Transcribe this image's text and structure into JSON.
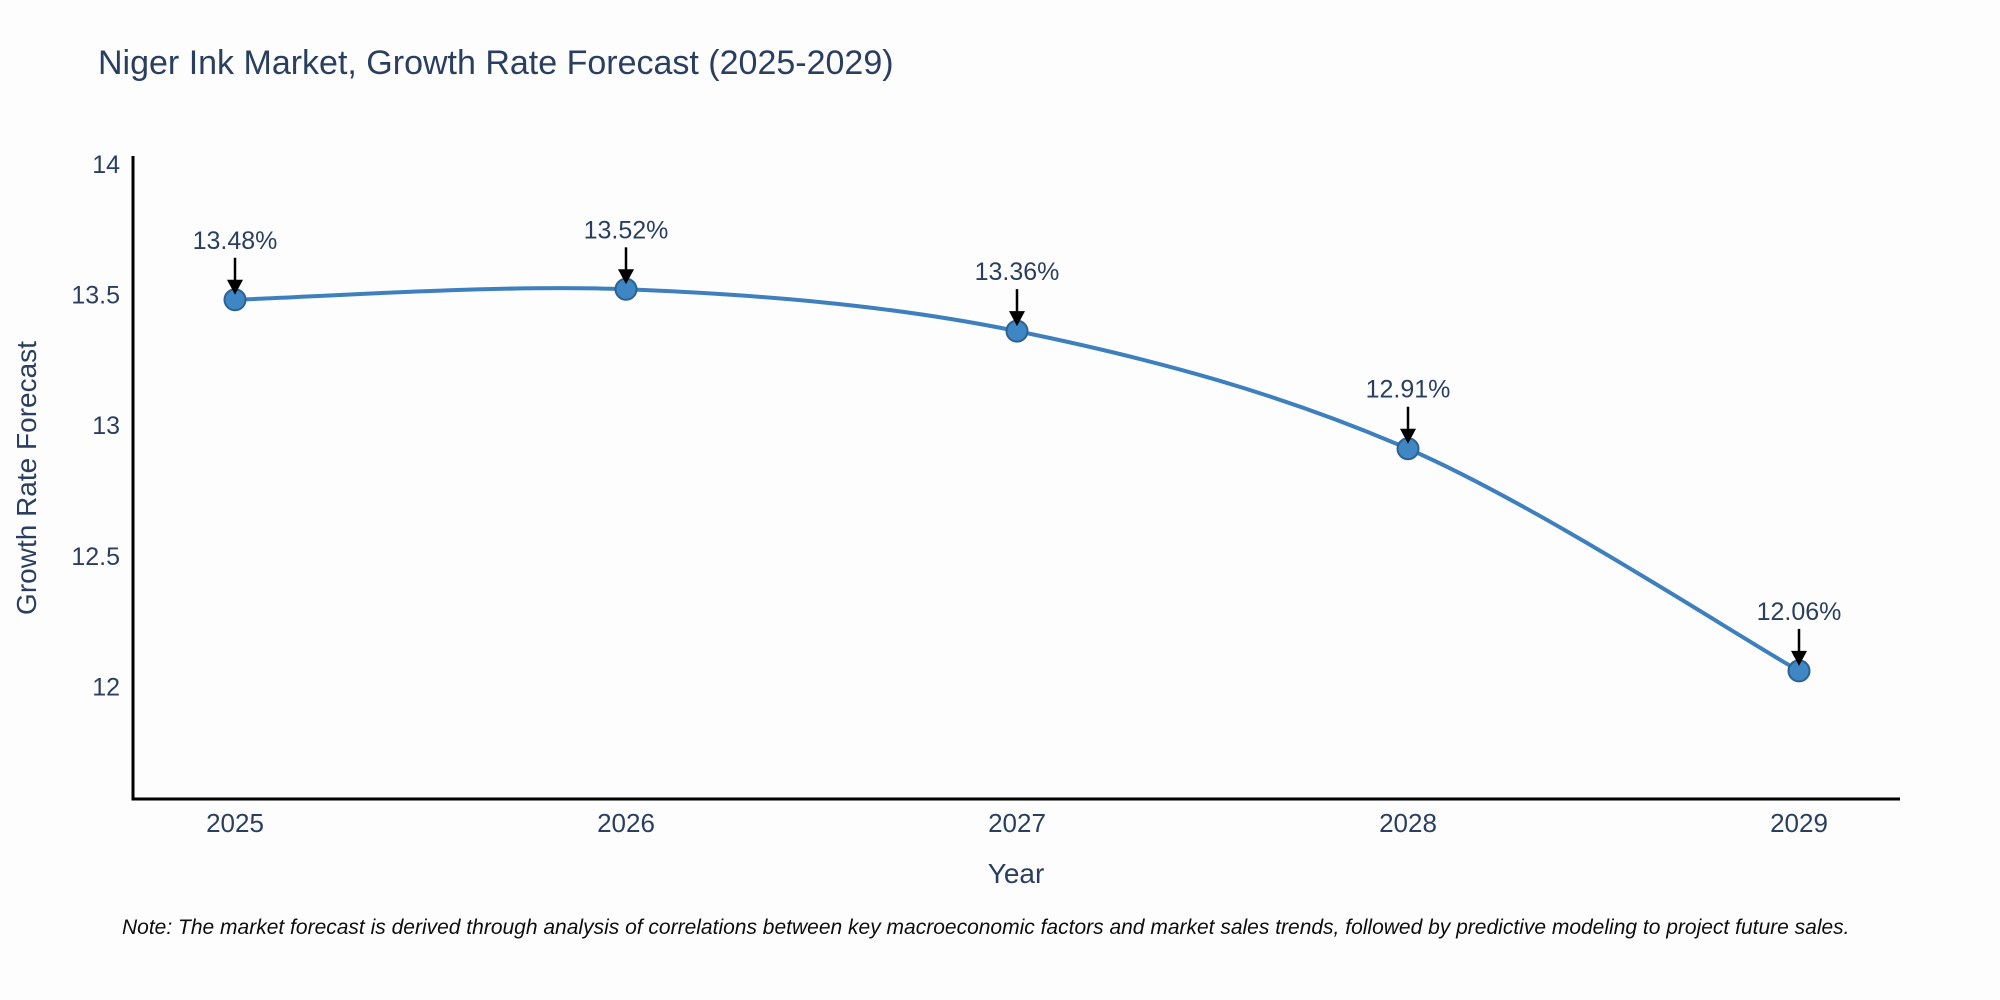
{
  "footnote": "Note: The market forecast is derived through analysis of correlations between key macroeconomic factors and market sales trends, followed by predictive modeling to project future sales.",
  "chart_data": {
    "type": "line",
    "title": "Niger Ink Market, Growth Rate Forecast (2025-2029)",
    "xlabel": "Year",
    "ylabel": "Growth Rate Forecast",
    "x": [
      2025,
      2026,
      2027,
      2028,
      2029
    ],
    "series": [
      {
        "name": "Growth Rate Forecast",
        "values": [
          13.48,
          13.52,
          13.36,
          12.91,
          12.06
        ]
      }
    ],
    "point_labels": [
      "13.48%",
      "13.52%",
      "13.36%",
      "12.91%",
      "12.06%"
    ],
    "xtick_labels": [
      "2025",
      "2026",
      "2027",
      "2028",
      "2029"
    ],
    "ytick_values": [
      14,
      13.5,
      13,
      12.5,
      12
    ],
    "ytick_labels": [
      "14",
      "13.5",
      "13",
      "12.5",
      "12"
    ],
    "ylim": [
      11.57,
      14.03
    ],
    "grid": false,
    "legend": "none",
    "line_shape": "spline",
    "colors": {
      "line": "#3e7fbd",
      "marker_fill": "#3f86c5",
      "marker_edge": "#2d628e",
      "arrow": "#000000",
      "axis_line": "#000000",
      "tick_text": "#2a3f5f",
      "annotation_text": "#2a3f5f",
      "title_text": "#2a3f5f",
      "note_text": "#0d0d0d",
      "background": "#fdfdfe"
    }
  }
}
